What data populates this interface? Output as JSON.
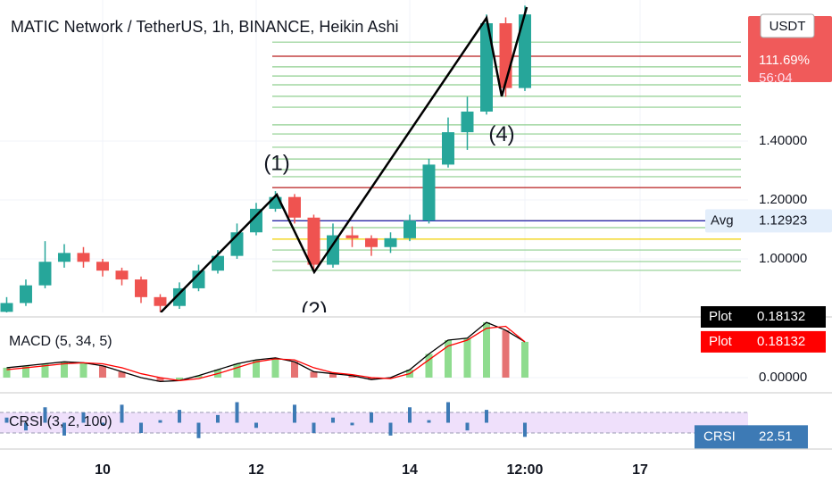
{
  "chart_data": [
    {
      "type": "candlestick",
      "title": "MATIC Network / TetherUS, 1h, BINANCE, Heikin Ashi",
      "x": [
        8.75,
        9.0,
        9.25,
        9.5,
        9.75,
        10.0,
        10.25,
        10.5,
        10.75,
        11.0,
        11.25,
        11.5,
        11.75,
        12.0,
        12.25,
        12.5,
        12.75,
        13.0,
        13.25,
        13.5,
        13.75,
        14.0,
        14.25,
        14.5,
        14.75,
        15.0,
        15.25,
        15.5
      ],
      "open": [
        0.82,
        0.85,
        0.91,
        0.99,
        1.02,
        0.99,
        0.96,
        0.93,
        0.87,
        0.84,
        0.9,
        0.96,
        1.01,
        1.09,
        1.17,
        1.21,
        1.14,
        0.98,
        1.08,
        1.07,
        1.04,
        1.07,
        1.13,
        1.32,
        1.43,
        1.5,
        1.8,
        1.58
      ],
      "high": [
        0.87,
        0.93,
        1.06,
        1.05,
        1.04,
        1.0,
        0.97,
        0.94,
        0.88,
        0.92,
        0.98,
        1.03,
        1.12,
        1.19,
        1.23,
        1.22,
        1.15,
        1.12,
        1.11,
        1.08,
        1.09,
        1.15,
        1.34,
        1.48,
        1.55,
        1.83,
        1.82,
        1.86
      ],
      "low": [
        0.8,
        0.84,
        0.9,
        0.97,
        0.97,
        0.94,
        0.91,
        0.85,
        0.82,
        0.83,
        0.89,
        0.95,
        1.0,
        1.08,
        1.16,
        1.12,
        0.96,
        0.97,
        1.04,
        1.01,
        1.02,
        1.06,
        1.12,
        1.31,
        1.37,
        1.49,
        1.55,
        1.57
      ],
      "close": [
        0.85,
        0.91,
        0.99,
        1.02,
        0.99,
        0.96,
        0.93,
        0.87,
        0.84,
        0.9,
        0.96,
        1.01,
        1.09,
        1.17,
        1.21,
        1.14,
        0.98,
        1.08,
        1.07,
        1.04,
        1.07,
        1.13,
        1.32,
        1.43,
        1.5,
        1.8,
        1.58,
        1.83
      ],
      "up_color": "#26a69a",
      "down_color": "#ef5350",
      "xlim": [
        8.663,
        18.407
      ],
      "xticks": [
        10,
        12,
        14,
        {
          "value": 15.5,
          "label": "12:00"
        },
        17
      ],
      "ylim": [
        0.824,
        1.879
      ],
      "yticks": [
        {
          "value": 1,
          "label": "1.00000"
        },
        {
          "value": 1.2,
          "label": "1.20000"
        },
        {
          "value": 1.4,
          "label": "1.40000"
        }
      ],
      "levels": [
        {
          "value": 1.736,
          "color": "#8fcf8f"
        },
        {
          "value": 1.688,
          "color": "#b71c1c"
        },
        {
          "value": 1.652,
          "color": "#8fcf8f"
        },
        {
          "value": 1.621,
          "color": "#8fcf8f"
        },
        {
          "value": 1.591,
          "color": "#8fcf8f"
        },
        {
          "value": 1.552,
          "color": "#8fcf8f"
        },
        {
          "value": 1.515,
          "color": "#8fcf8f"
        },
        {
          "value": 1.455,
          "color": "#8fcf8f"
        },
        {
          "value": 1.424,
          "color": "#8fcf8f"
        },
        {
          "value": 1.379,
          "color": "#8fcf8f"
        },
        {
          "value": 1.339,
          "color": "#8fcf8f"
        },
        {
          "value": 1.303,
          "color": "#8fcf8f"
        },
        {
          "value": 1.279,
          "color": "#8fcf8f"
        },
        {
          "value": 1.242,
          "color": "#b71c1c"
        },
        {
          "value": 1.13,
          "color": "#f0d000"
        },
        {
          "value": 1.106,
          "color": "#8fcf8f"
        },
        {
          "value": 1.067,
          "color": "#f0d000"
        },
        {
          "value": 1.03,
          "color": "#8fcf8f"
        },
        {
          "value": 0.991,
          "color": "#8fcf8f"
        },
        {
          "value": 0.961,
          "color": "#8fcf8f"
        }
      ],
      "avg": {
        "label": "Avg",
        "value": 1.12923,
        "color": "#2a2ab8"
      },
      "wave": [
        {
          "x": 10.756,
          "y": 0.818
        },
        {
          "x": 12.268,
          "y": 1.218,
          "label": "(1)"
        },
        {
          "x": 12.756,
          "y": 0.955,
          "label": "(2)"
        },
        {
          "x": 15.0,
          "y": 1.818
        },
        {
          "x": 15.198,
          "y": 1.552,
          "label": "(4)"
        },
        {
          "x": 15.524,
          "y": 1.855
        }
      ],
      "currency": "USDT",
      "change": "111.69%",
      "countdown": "56:04"
    },
    {
      "type": "macd",
      "title": "MACD (5, 34, 5)",
      "ylim": [
        -0.077,
        0.294
      ],
      "yticks": [
        {
          "value": 0,
          "label": "0.00000"
        }
      ],
      "series": [
        {
          "name": "Plot",
          "color": "#000000",
          "values": [
            0.05,
            0.06,
            0.07,
            0.08,
            0.075,
            0.06,
            0.03,
            0.0,
            -0.02,
            -0.015,
            0.01,
            0.04,
            0.07,
            0.09,
            0.1,
            0.08,
            0.03,
            0.02,
            0.01,
            -0.01,
            0.0,
            0.04,
            0.12,
            0.19,
            0.2,
            0.28,
            0.24,
            0.18132
          ]
        },
        {
          "name": "Plot",
          "color": "#ff0000",
          "values": [
            0.04,
            0.05,
            0.06,
            0.07,
            0.075,
            0.07,
            0.05,
            0.02,
            0.0,
            -0.015,
            -0.005,
            0.02,
            0.05,
            0.08,
            0.095,
            0.09,
            0.05,
            0.025,
            0.015,
            0.0,
            -0.005,
            0.02,
            0.09,
            0.16,
            0.19,
            0.25,
            0.26,
            0.18132
          ]
        }
      ],
      "up_color": "#8fdc8f",
      "down_color": "#e57373"
    },
    {
      "type": "crsi",
      "title": "CRSI (3, 2, 100)",
      "name": "CRSI",
      "color": "#3d7ab5",
      "ylim": [
        4,
        103
      ],
      "band": [
        30,
        70
      ],
      "band_color": "#efe0fb",
      "values": [
        60,
        35,
        80,
        25,
        70,
        45,
        85,
        30,
        55,
        75,
        20,
        65,
        90,
        40,
        50,
        85,
        30,
        60,
        45,
        70,
        25,
        80,
        55,
        90,
        35,
        75,
        50,
        22.51
      ]
    }
  ]
}
